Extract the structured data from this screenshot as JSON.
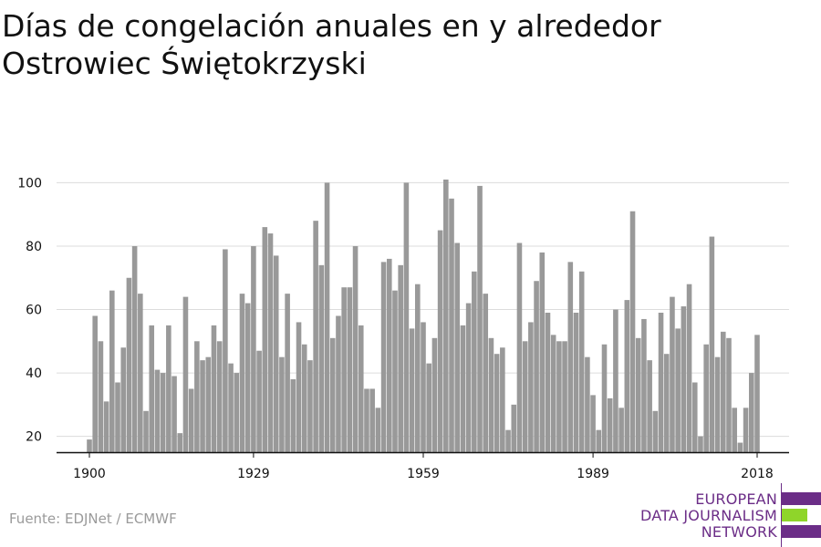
{
  "title_lines": [
    "Días de congelación anuales en y alrededor",
    "Ostrowiec Świętokrzyski"
  ],
  "source": "Fuente: EDJNet / ECMWF",
  "logo": {
    "lines": [
      "EUROPEAN",
      "DATA JOURNALISM",
      "NETWORK"
    ],
    "colors": {
      "purple": "#6b2d87",
      "green": "#8fd52a"
    }
  },
  "chart_data": {
    "type": "bar",
    "title": "Días de congelación anuales en y alrededor Ostrowiec Świętokrzyski",
    "xlabel": "",
    "ylabel": "",
    "x_ticks": [
      "1900",
      "1929",
      "1959",
      "1989",
      "2018"
    ],
    "y_ticks": [
      20,
      40,
      60,
      80,
      100
    ],
    "ylim": [
      15,
      103
    ],
    "grid": "horizontal",
    "bar_color": "#999999",
    "x": [
      1900,
      1901,
      1902,
      1903,
      1904,
      1905,
      1906,
      1907,
      1908,
      1909,
      1910,
      1911,
      1912,
      1913,
      1914,
      1915,
      1916,
      1917,
      1918,
      1919,
      1920,
      1921,
      1922,
      1923,
      1924,
      1925,
      1926,
      1927,
      1928,
      1929,
      1930,
      1931,
      1932,
      1933,
      1934,
      1935,
      1936,
      1937,
      1938,
      1939,
      1940,
      1941,
      1942,
      1943,
      1944,
      1945,
      1946,
      1947,
      1948,
      1949,
      1950,
      1951,
      1952,
      1953,
      1954,
      1955,
      1956,
      1957,
      1958,
      1959,
      1960,
      1961,
      1962,
      1963,
      1964,
      1965,
      1966,
      1967,
      1968,
      1969,
      1970,
      1971,
      1972,
      1973,
      1974,
      1975,
      1976,
      1977,
      1978,
      1979,
      1980,
      1981,
      1982,
      1983,
      1984,
      1985,
      1986,
      1987,
      1988,
      1989,
      1990,
      1991,
      1992,
      1993,
      1994,
      1995,
      1996,
      1997,
      1998,
      1999,
      2000,
      2001,
      2002,
      2003,
      2004,
      2005,
      2006,
      2007,
      2008,
      2009,
      2010,
      2011,
      2012,
      2013,
      2014,
      2015,
      2016,
      2017,
      2018
    ],
    "values": [
      19,
      58,
      50,
      31,
      66,
      37,
      48,
      70,
      80,
      65,
      28,
      55,
      41,
      40,
      55,
      39,
      21,
      64,
      35,
      50,
      44,
      45,
      55,
      50,
      79,
      43,
      40,
      65,
      62,
      80,
      47,
      86,
      84,
      77,
      45,
      65,
      38,
      56,
      49,
      44,
      88,
      74,
      100,
      51,
      58,
      67,
      67,
      80,
      55,
      35,
      35,
      29,
      75,
      76,
      66,
      74,
      100,
      54,
      68,
      56,
      43,
      51,
      85,
      101,
      95,
      81,
      55,
      62,
      72,
      99,
      65,
      51,
      46,
      48,
      22,
      30,
      81,
      50,
      56,
      69,
      78,
      59,
      52,
      50,
      50,
      75,
      59,
      72,
      45,
      33,
      22,
      49,
      32,
      60,
      29,
      63,
      91,
      51,
      57,
      44,
      28,
      59,
      46,
      64,
      54,
      61,
      68,
      37,
      20,
      49,
      83,
      45,
      53,
      51,
      29,
      18,
      29,
      40,
      52
    ]
  }
}
